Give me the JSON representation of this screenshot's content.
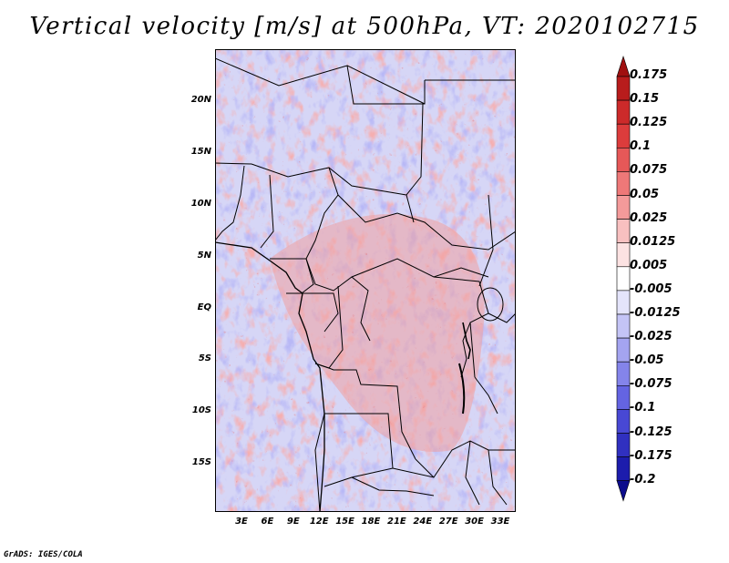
{
  "title": "Vertical velocity [m/s] at 500hPa, VT: 2020102715",
  "footer": "GrADS: IGES/COLA",
  "colors": {
    "positive": "#e0564f",
    "negative": "#6c6ce0",
    "border": "#000000"
  },
  "map": {
    "lat_labels": [
      "20N",
      "15N",
      "10N",
      "5N",
      "EQ",
      "5S",
      "10S",
      "15S"
    ],
    "lon_labels": [
      "3E",
      "6E",
      "9E",
      "12E",
      "15E",
      "18E",
      "21E",
      "24E",
      "27E",
      "30E",
      "33E"
    ]
  },
  "colorbar": {
    "levels": [
      "0.175",
      "0.15",
      "0.125",
      "0.1",
      "0.075",
      "0.05",
      "0.025",
      "0.0125",
      "0.005",
      "-0.005",
      "-0.0125",
      "-0.025",
      "-0.05",
      "-0.075",
      "-0.1",
      "-0.125",
      "-0.175",
      "-0.2"
    ],
    "colors": [
      "#a01010",
      "#b81c1c",
      "#cc2a2a",
      "#dc3c3c",
      "#e65858",
      "#ee7878",
      "#f49a9a",
      "#f8c0c0",
      "#fce2e2",
      "#ffffff",
      "#e4e4fb",
      "#c4c4f6",
      "#a4a4f0",
      "#8484ea",
      "#6464e2",
      "#4848d4",
      "#3030c0",
      "#1c1cac",
      "#0c0c8c"
    ]
  }
}
